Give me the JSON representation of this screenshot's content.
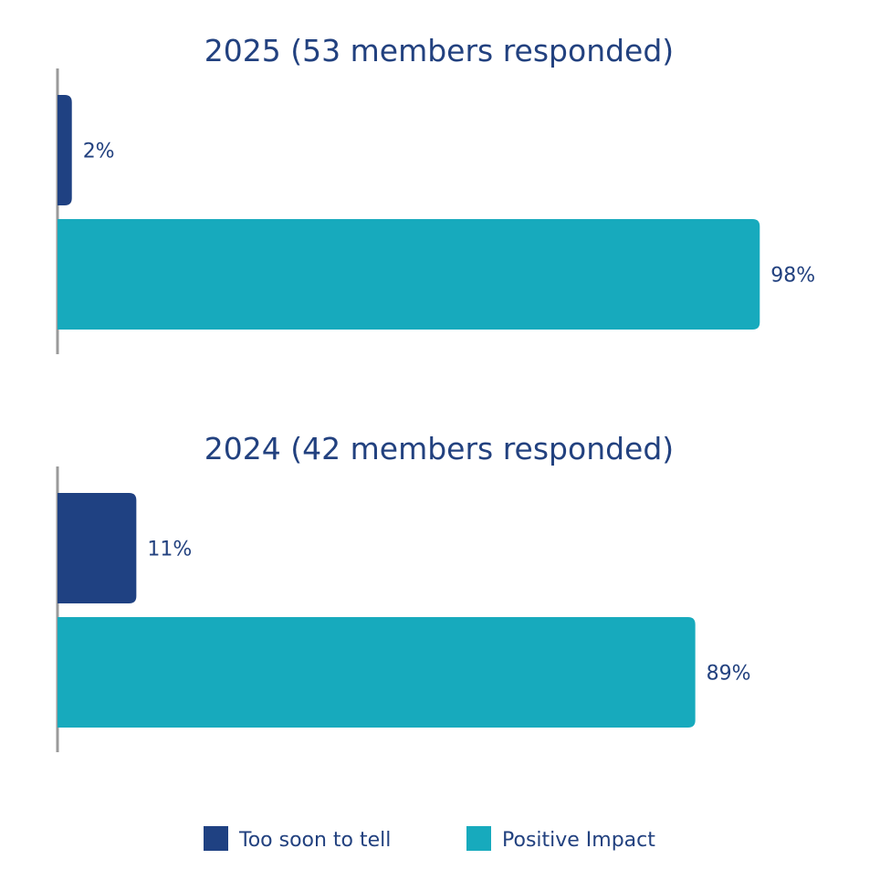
{
  "colors": {
    "too_soon": "#1f4182",
    "positive": "#17aabd",
    "text": "#22417f",
    "axis": "#9a9a9a"
  },
  "legend": [
    {
      "label": "Too soon to tell",
      "color": "#1f4182"
    },
    {
      "label": "Positive Impact",
      "color": "#17aabd"
    }
  ],
  "chart_data": [
    {
      "type": "bar",
      "orientation": "horizontal",
      "title": "2025 (53 members responded)",
      "categories": [
        "Too soon to tell",
        "Positive Impact"
      ],
      "values": [
        2,
        98
      ],
      "labels": [
        "2%",
        "98%"
      ],
      "xlim": [
        0,
        100
      ]
    },
    {
      "type": "bar",
      "orientation": "horizontal",
      "title": "2024 (42 members responded)",
      "categories": [
        "Too soon to tell",
        "Positive Impact"
      ],
      "values": [
        11,
        89
      ],
      "labels": [
        "11%",
        "89%"
      ],
      "xlim": [
        0,
        100
      ]
    }
  ]
}
